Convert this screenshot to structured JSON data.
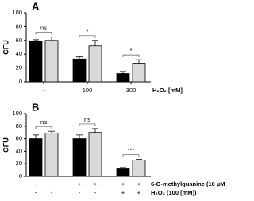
{
  "chart_data": [
    {
      "type": "bar",
      "panel": "A",
      "ylabel": "CFU",
      "xlabel": "H₂O₂ [mM]",
      "categories": [
        "-",
        "100",
        "300"
      ],
      "series": [
        {
          "color": "#000000",
          "values": [
            59,
            33,
            12
          ],
          "errors": [
            2,
            3,
            3
          ]
        },
        {
          "color": "#d9d9d9",
          "values": [
            60,
            52,
            27
          ],
          "errors": [
            5,
            8,
            5
          ]
        }
      ],
      "significance": [
        "ns",
        "*",
        "*"
      ],
      "ylim": [
        0,
        100
      ],
      "yticks": [
        0,
        20,
        40,
        60,
        80,
        100
      ]
    },
    {
      "type": "bar",
      "panel": "B",
      "ylabel": "CFU",
      "categories": [
        null,
        null,
        null
      ],
      "series": [
        {
          "color": "#000000",
          "values": [
            60,
            60,
            12
          ],
          "errors": [
            6,
            6,
            2
          ]
        },
        {
          "color": "#d9d9d9",
          "values": [
            69,
            70,
            26
          ],
          "errors": [
            3,
            6,
            1
          ]
        }
      ],
      "significance": [
        "ns",
        "ns",
        "***"
      ],
      "treatments": [
        {
          "name": "6-O-methylguanine (10 µM",
          "signs": [
            "-",
            "-",
            "+",
            "+",
            "+",
            "+"
          ]
        },
        {
          "name": "H₂O₂ (100 [mM])",
          "signs": [
            "-",
            "-",
            "-",
            "-",
            "+",
            "+"
          ]
        }
      ],
      "ylim": [
        0,
        100
      ],
      "yticks": [
        0,
        20,
        40,
        60,
        80,
        100
      ]
    }
  ]
}
